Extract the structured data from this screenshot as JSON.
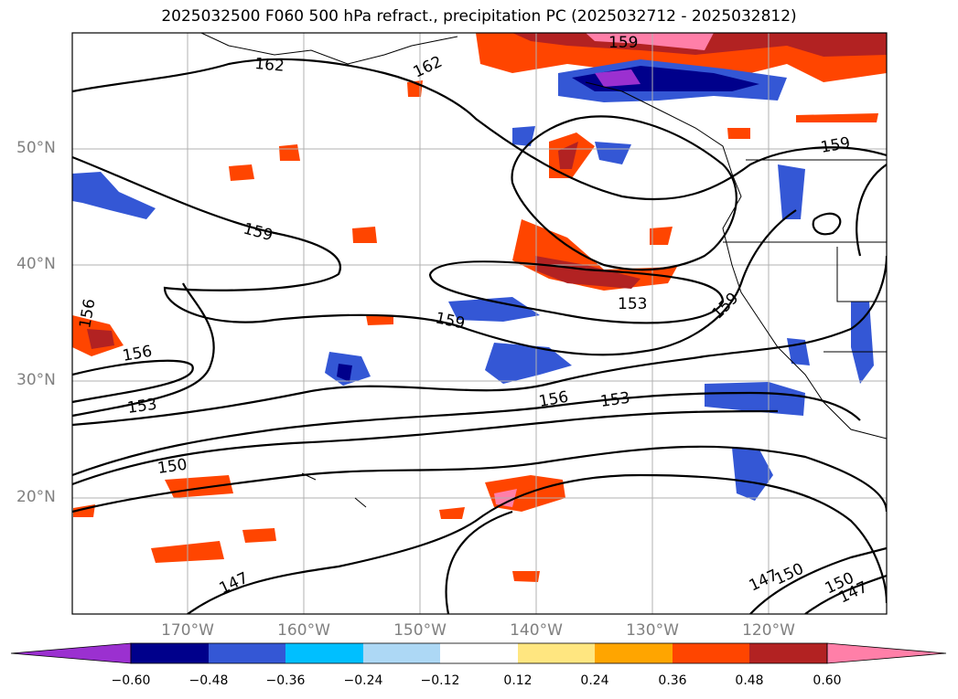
{
  "title": "2025032500 F060 500 hPa refract., precipitation PC (2025032712 - 2025032812)",
  "lat_labels": [
    "50°N",
    "40°N",
    "30°N",
    "20°N"
  ],
  "lon_labels": [
    "170°W",
    "160°W",
    "150°W",
    "140°W",
    "130°W",
    "120°W"
  ],
  "contour_labels": [
    "162",
    "162",
    "159",
    "159",
    "159",
    "159",
    "159",
    "156",
    "156",
    "156",
    "153",
    "153",
    "153",
    "150",
    "150",
    "150",
    "147",
    "147",
    "147"
  ],
  "colorbar": {
    "ticks": [
      "−0.60",
      "−0.48",
      "−0.36",
      "−0.24",
      "−0.12",
      "0.12",
      "0.24",
      "0.36",
      "0.48",
      "0.60"
    ],
    "colors": [
      "#9b30d0",
      "#00008b",
      "#3457d5",
      "#00bfff",
      "#add8f5",
      "#ffffff",
      "#ffe680",
      "#ffa500",
      "#ff4500",
      "#b22222",
      "#ff7fa8"
    ]
  },
  "colors": {
    "contour": "#000000",
    "grid": "#b0b0b0",
    "coast": "#000000"
  }
}
